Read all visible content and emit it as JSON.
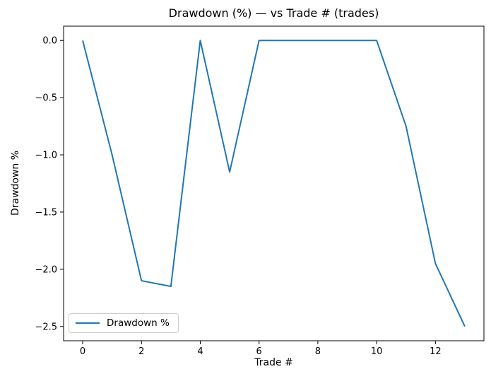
{
  "chart_data": {
    "type": "line",
    "title": "Drawdown (%) — vs Trade # (trades)",
    "xlabel": "Trade #",
    "ylabel": "Drawdown %",
    "x": [
      0,
      1,
      2,
      3,
      4,
      5,
      6,
      7,
      8,
      9,
      10,
      11,
      12,
      13
    ],
    "series": [
      {
        "name": "Drawdown %",
        "color": "#1f77b4",
        "values": [
          0.0,
          -1.0,
          -2.1,
          -2.15,
          0.0,
          -1.15,
          0.0,
          0.0,
          0.0,
          0.0,
          0.0,
          -0.75,
          -1.95,
          -2.5
        ]
      }
    ],
    "xlim": [
      -0.65,
      13.65
    ],
    "ylim": [
      -2.625,
      0.125
    ],
    "xticks": {
      "values": [
        0,
        2,
        4,
        6,
        8,
        10,
        12
      ],
      "labels": [
        "0",
        "2",
        "4",
        "6",
        "8",
        "10",
        "12"
      ]
    },
    "yticks": {
      "values": [
        0.0,
        -0.5,
        -1.0,
        -1.5,
        -2.0,
        -2.5
      ],
      "labels": [
        "0.0",
        "−0.5",
        "−1.0",
        "−1.5",
        "−2.0",
        "−2.5"
      ]
    },
    "grid": false,
    "legend": {
      "position": "lower left"
    }
  }
}
